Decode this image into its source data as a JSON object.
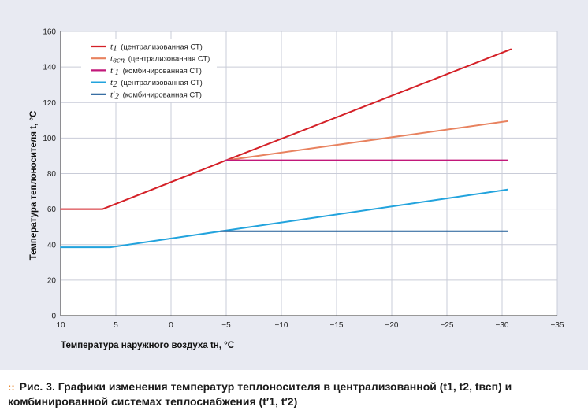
{
  "chart_data": {
    "type": "line",
    "ylabel": "Температура теплоносителя t, °С",
    "xlabel": "Температура наружного воздуха tн, °С",
    "xlim": [
      10,
      -35
    ],
    "ylim": [
      0,
      160
    ],
    "xticks": [
      10,
      5,
      0,
      -5,
      -10,
      -15,
      -20,
      -25,
      -30,
      -35
    ],
    "xtick_labels": [
      "10",
      "5",
      "0",
      "−5",
      "−10",
      "−15",
      "−20",
      "−25",
      "−30",
      "−35"
    ],
    "yticks": [
      0,
      20,
      40,
      60,
      80,
      100,
      120,
      140,
      160
    ],
    "ytick_labels": [
      "0",
      "20",
      "40",
      "60",
      "80",
      "100",
      "120",
      "140",
      "160"
    ],
    "grid": "vertical and horizontal lines",
    "legend_position": "top-left",
    "series": [
      {
        "name": "t1 (централизованная СТ)",
        "var": "t",
        "sub": "1",
        "prime": "",
        "desc": "(централизованная СТ)",
        "color": "#d42027",
        "points": [
          [
            10,
            60
          ],
          [
            6.2,
            60
          ],
          [
            -5,
            87.5
          ],
          [
            -30.8,
            150
          ]
        ]
      },
      {
        "name": "tвсп (централизованная СТ)",
        "var": "t",
        "sub": "всп",
        "prime": "",
        "desc": "(централизованная СТ)",
        "color": "#e8825f",
        "points": [
          [
            -5,
            87.5
          ],
          [
            -30.5,
            109.5
          ]
        ]
      },
      {
        "name": "t′1 (комбинированная СТ)",
        "var": "t",
        "sub": "1",
        "prime": "′",
        "desc": "(комбинированная СТ)",
        "color": "#c2187a",
        "points": [
          [
            -5,
            87.5
          ],
          [
            -30.5,
            87.5
          ]
        ]
      },
      {
        "name": "t2 (централизованная СТ)",
        "var": "t",
        "sub": "2",
        "prime": "",
        "desc": "(централизованная СТ)",
        "color": "#22a3dd",
        "points": [
          [
            10,
            38.5
          ],
          [
            5.5,
            38.5
          ],
          [
            -4.5,
            47.5
          ],
          [
            -30.5,
            71
          ]
        ]
      },
      {
        "name": "t′2 (комбинированная СТ)",
        "var": "t",
        "sub": "2",
        "prime": "′",
        "desc": "(комбинированная СТ)",
        "color": "#1c5a96",
        "points": [
          [
            -4.5,
            47.5
          ],
          [
            -30.5,
            47.5
          ]
        ]
      }
    ]
  },
  "caption": {
    "marker": "::",
    "text": "Рис. 3. Графики изменения температур теплоносителя в централизованной (t1, t2, tвсп) и комбинированной системах теплоснабжения (t′1, t′2)"
  }
}
